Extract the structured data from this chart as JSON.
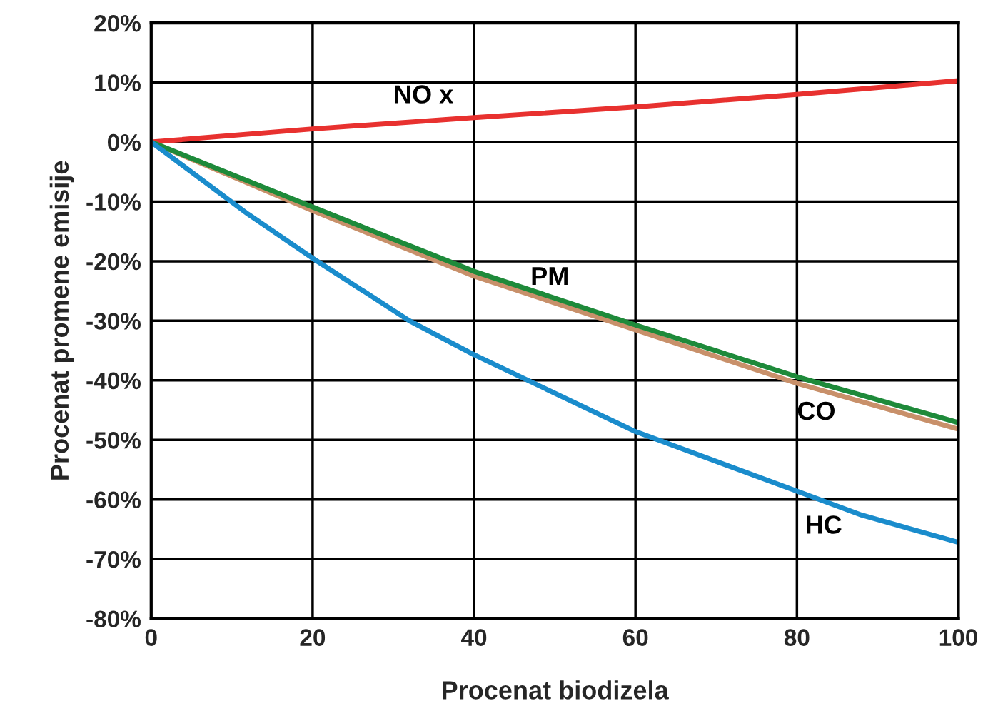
{
  "chart_data": {
    "type": "line",
    "xlabel": "Procenat biodizela",
    "ylabel": "Procenat promene emisije",
    "xlim": [
      0,
      100
    ],
    "xticks": [
      0,
      20,
      40,
      60,
      80,
      100
    ],
    "ylim": [
      -80,
      20
    ],
    "yticks": [
      {
        "value": 20,
        "label": "20%"
      },
      {
        "value": 10,
        "label": "10%"
      },
      {
        "value": 0,
        "label": "0%"
      },
      {
        "value": -10,
        "label": "-10%"
      },
      {
        "value": -20,
        "label": "-20%"
      },
      {
        "value": -30,
        "label": "-30%"
      },
      {
        "value": -40,
        "label": "-40%"
      },
      {
        "value": -50,
        "label": "-50%"
      },
      {
        "value": -60,
        "label": "-60%"
      },
      {
        "value": -70,
        "label": "-70%"
      },
      {
        "value": -80,
        "label": "-80%"
      }
    ],
    "grid": true,
    "marker": "none",
    "line_style": "solid",
    "series": [
      {
        "name": "NO x",
        "color": "#e8312f",
        "x": [
          0,
          20,
          40,
          60,
          80,
          100
        ],
        "values": [
          0,
          2.2,
          4.1,
          5.9,
          8.0,
          10.3
        ]
      },
      {
        "name": "CO",
        "color": "#c8906a",
        "x": [
          0,
          20,
          40,
          60,
          80,
          100
        ],
        "values": [
          0,
          -11.5,
          -22.5,
          -31.5,
          -40.5,
          -48.2
        ]
      },
      {
        "name": "PM",
        "color": "#1e8a3a",
        "x": [
          0,
          20,
          40,
          60,
          80,
          100
        ],
        "values": [
          0,
          -10.9,
          -21.7,
          -30.7,
          -39.4,
          -47.1
        ]
      },
      {
        "name": "HC",
        "color": "#1a8ccc",
        "x": [
          0,
          12,
          20,
          32,
          40,
          60,
          80,
          88,
          100
        ],
        "values": [
          0,
          -12.1,
          -19.5,
          -30,
          -35.7,
          -48.6,
          -58.6,
          -62.6,
          -67.2
        ]
      }
    ]
  }
}
